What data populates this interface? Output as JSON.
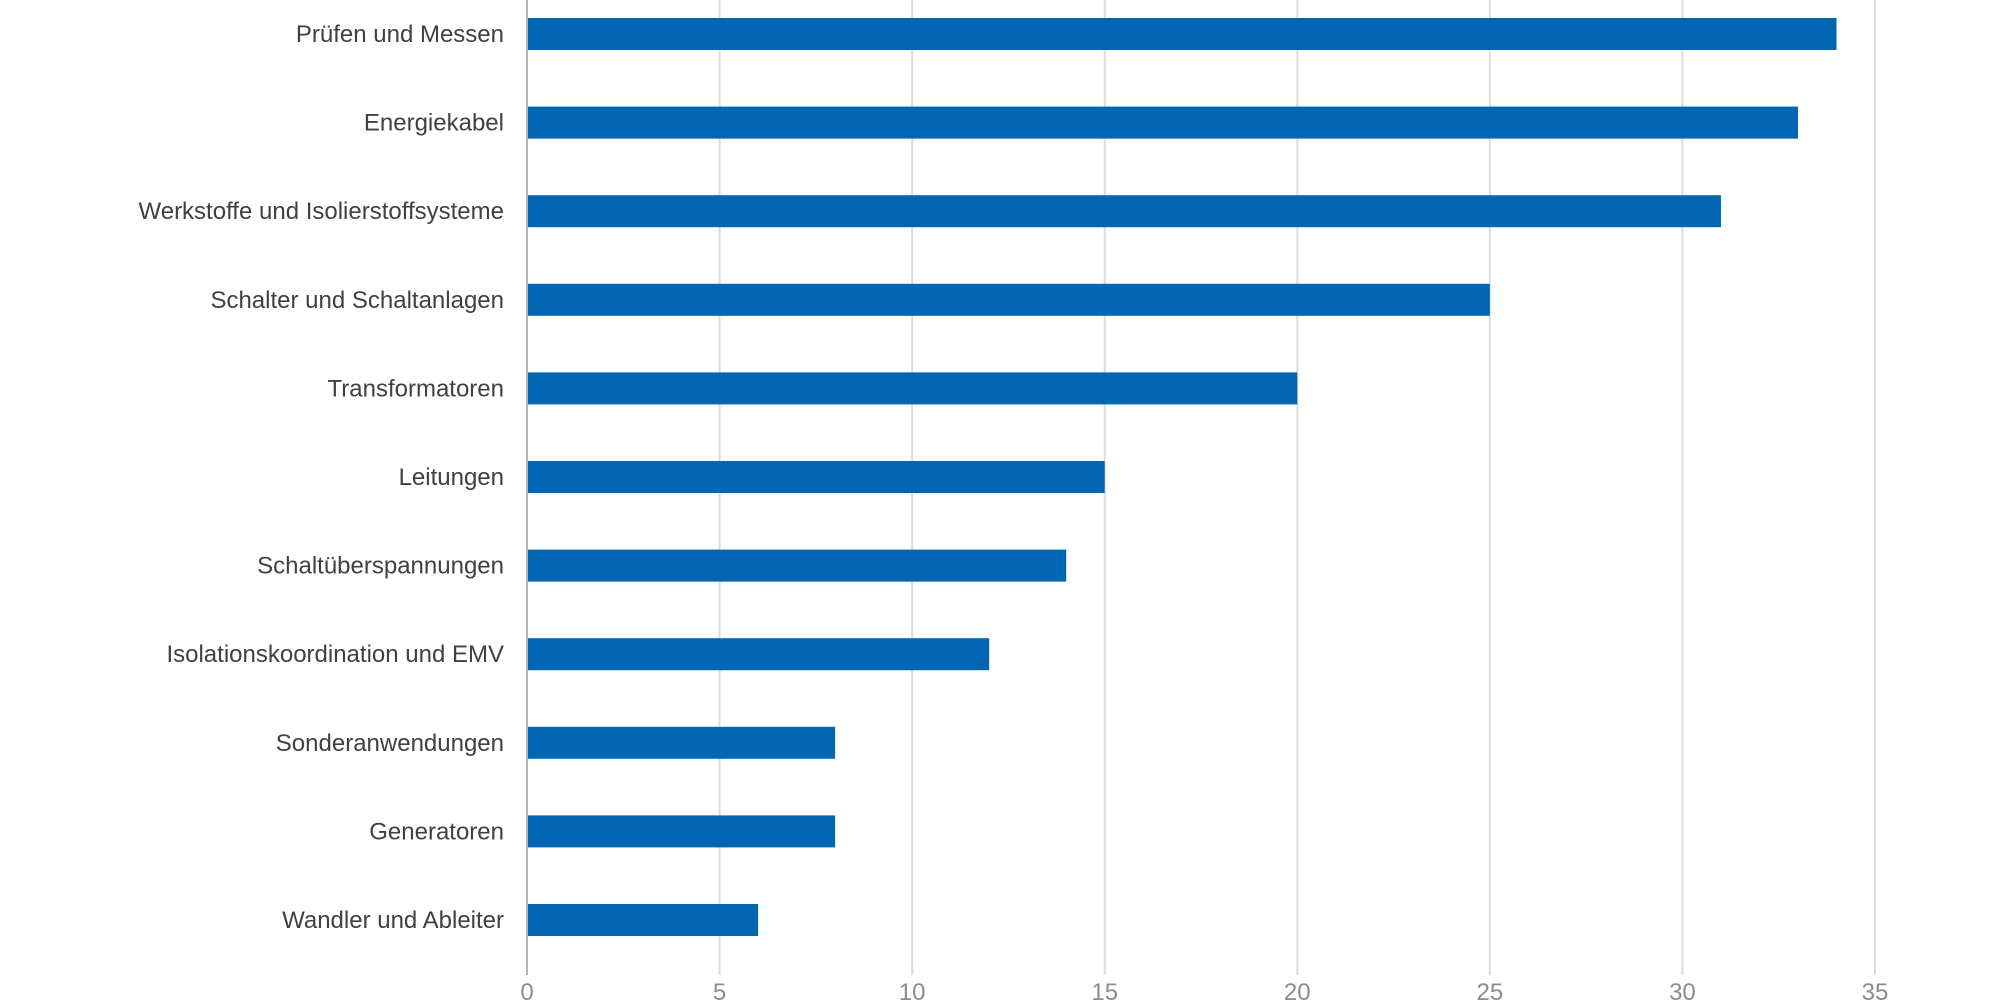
{
  "colors": {
    "bar": "#0066b3",
    "grid": "#dcdcdc",
    "axis": "#b4b4b4"
  },
  "chart_data": {
    "type": "bar",
    "orientation": "horizontal",
    "title": "",
    "xlabel": "",
    "ylabel": "",
    "categories": [
      "Prüfen und Messen",
      "Energiekabel",
      "Werkstoffe und Isolierstoffsysteme",
      "Schalter und Schaltanlagen",
      "Transformatoren",
      "Leitungen",
      "Schaltüberspannungen",
      "Isolationskoordination und EMV",
      "Sonderanwendungen",
      "Generatoren",
      "Wandler und Ableiter"
    ],
    "values": [
      34,
      33,
      31,
      25,
      20,
      15,
      14,
      12,
      8,
      8,
      6
    ],
    "xlim": [
      0,
      35
    ],
    "xticks": [
      "0",
      "5",
      "10",
      "15",
      "20",
      "25",
      "30",
      "35"
    ],
    "grid": "vertical",
    "legend": "none"
  }
}
